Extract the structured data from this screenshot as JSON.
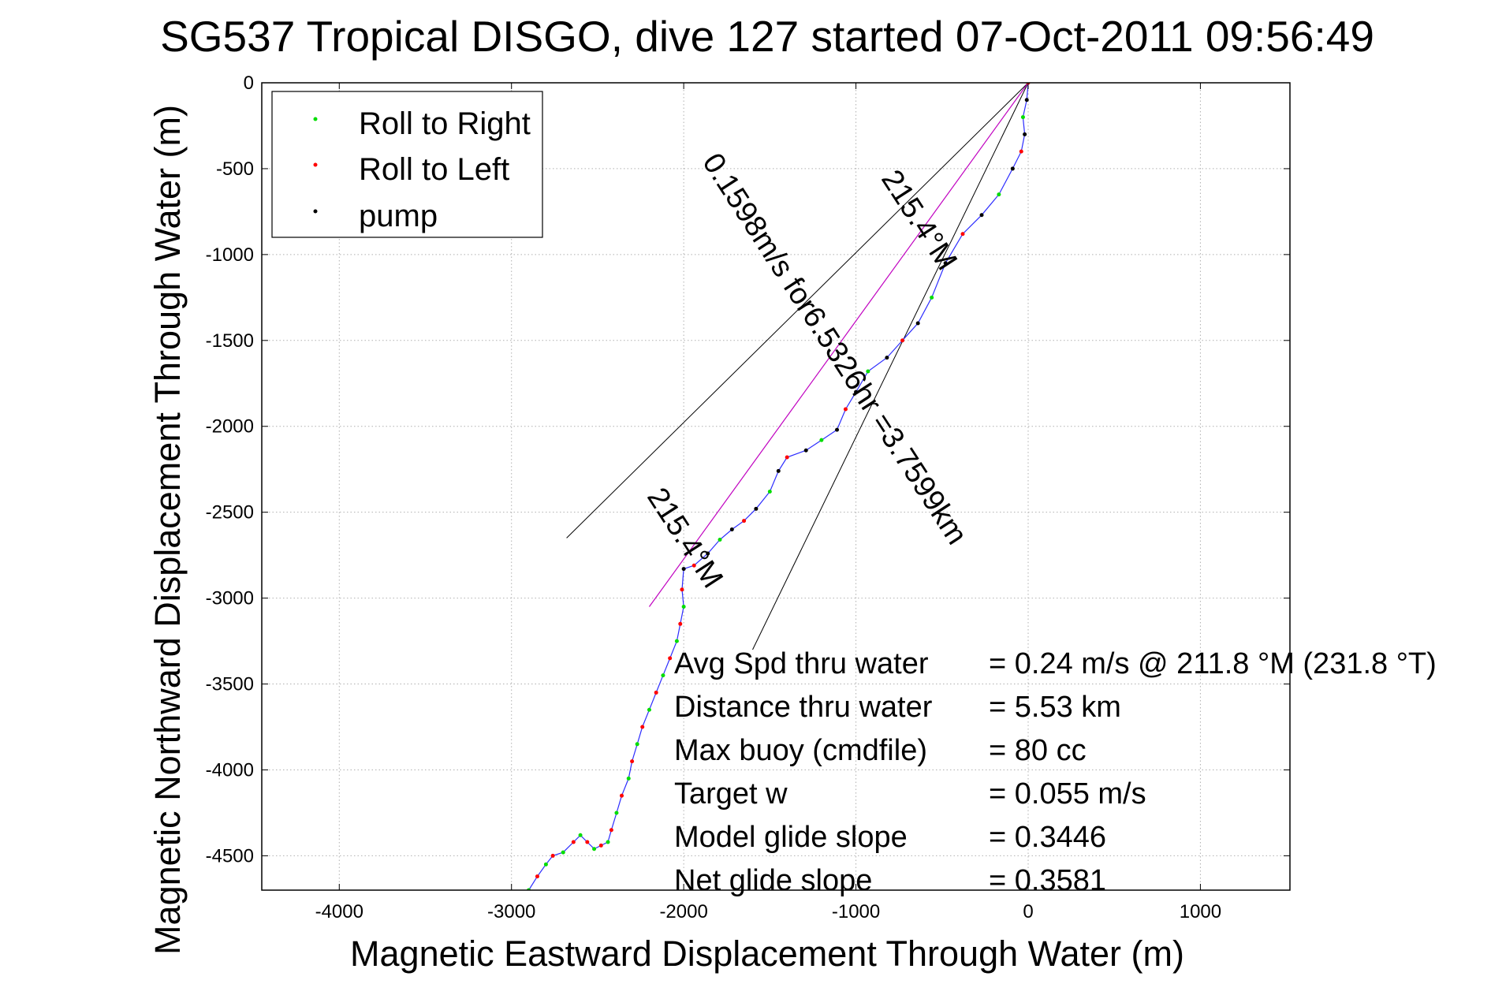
{
  "chart_data": {
    "type": "scatter",
    "title": "SG537 Tropical DISGO, dive 127 started 07-Oct-2011 09:56:49",
    "xlabel": "Magnetic Eastward Displacement Through Water (m)",
    "ylabel": "Magnetic Northward Displacement Through Water (m)",
    "xlim": [
      -4450,
      1520
    ],
    "ylim": [
      -4700,
      0
    ],
    "xticks": [
      -4000,
      -3000,
      -2000,
      -1000,
      0,
      1000
    ],
    "xticklabels": [
      "-4000",
      "-3000",
      "-2000",
      "-1000",
      "0",
      "1000"
    ],
    "yticks": [
      0,
      -500,
      -1000,
      -1500,
      -2000,
      -2500,
      -3000,
      -3500,
      -4000,
      -4500
    ],
    "yticklabels": [
      "0",
      "-500",
      "-1000",
      "-1500",
      "-2000",
      "-2500",
      "-3000",
      "-3500",
      "-4000",
      "-4500"
    ],
    "grid": true,
    "legend_position": "top-left",
    "legend": [
      {
        "label": "Roll to Right",
        "color": "#00dd00"
      },
      {
        "label": "Roll to Left",
        "color": "#ff0000"
      },
      {
        "label": "pump",
        "color": "#000000"
      }
    ],
    "track": {
      "name": "track",
      "color": "#2c2cff",
      "x": [
        0,
        -8,
        -30,
        -20,
        -40,
        -90,
        -170,
        -270,
        -380,
        -480,
        -560,
        -640,
        -730,
        -820,
        -930,
        -1000,
        -1060,
        -1110,
        -1200,
        -1290,
        -1400,
        -1450,
        -1500,
        -1580,
        -1650,
        -1720,
        -1790,
        -1860,
        -1940,
        -2000,
        -2010,
        -2000,
        -2020,
        -2040,
        -2080,
        -2120,
        -2160,
        -2200,
        -2240,
        -2270,
        -2300,
        -2320,
        -2360,
        -2390,
        -2420,
        -2440,
        -2480,
        -2520,
        -2560,
        -2600,
        -2640,
        -2700,
        -2760,
        -2800,
        -2850,
        -2900
      ],
      "y": [
        0,
        -100,
        -200,
        -300,
        -400,
        -500,
        -650,
        -770,
        -880,
        -1050,
        -1250,
        -1400,
        -1500,
        -1600,
        -1680,
        -1800,
        -1900,
        -2020,
        -2080,
        -2140,
        -2180,
        -2260,
        -2380,
        -2480,
        -2550,
        -2600,
        -2660,
        -2740,
        -2810,
        -2830,
        -2950,
        -3050,
        -3150,
        -3250,
        -3350,
        -3450,
        -3550,
        -3650,
        -3750,
        -3850,
        -3950,
        -4050,
        -4150,
        -4250,
        -4350,
        -4420,
        -4440,
        -4460,
        -4420,
        -4380,
        -4420,
        -4480,
        -4500,
        -4550,
        -4620,
        -4700
      ]
    },
    "dive_path": {
      "color": "#c000c0",
      "x": [
        0,
        -2200
      ],
      "y": [
        0,
        -3050
      ]
    },
    "wedge_lines": [
      {
        "x": [
          0,
          -2680
        ],
        "y": [
          0,
          -2650
        ]
      },
      {
        "x": [
          0,
          -1600
        ],
        "y": [
          0,
          -3300
        ]
      }
    ],
    "rotated_annotations": [
      {
        "text": "0.1598m/s for6.5326hr =3.7599km",
        "x": -1170,
        "y": -1580,
        "angle_deg": 57
      },
      {
        "text": "215.4°M",
        "x": -2040,
        "y": -2680,
        "angle_deg": 57
      },
      {
        "text": "215.4°M",
        "x": -680,
        "y": -830,
        "angle_deg": 57
      }
    ],
    "stats": [
      {
        "label": "Avg Spd thru water",
        "value": "=  0.24 m/s @ 211.8 °M (231.8 °T)"
      },
      {
        "label": "Distance thru water",
        "value": "=  5.53 km"
      },
      {
        "label": "Max buoy (cmdfile)",
        "value": "= 80 cc"
      },
      {
        "label": "Target w",
        "value": "= 0.055 m/s"
      },
      {
        "label": "Model glide slope",
        "value": "= 0.3446"
      },
      {
        "label": "Net glide slope",
        "value": "= 0.3581"
      }
    ]
  }
}
